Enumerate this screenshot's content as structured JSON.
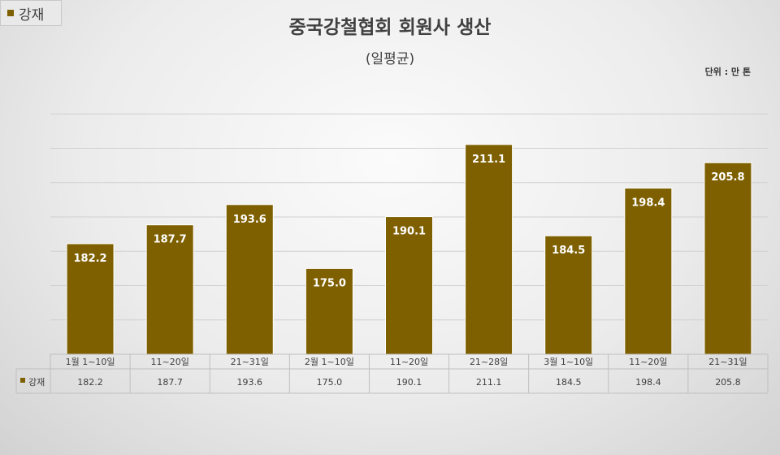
{
  "legend": {
    "label": "강재",
    "color": "#7f6000"
  },
  "header": {
    "title": "중국강철협회 회원사 생산",
    "subtitle": "(일평균)",
    "unit": "단위 : 만 톤"
  },
  "chart_data": {
    "type": "bar",
    "title": "중국강철협회 회원사 생산",
    "subtitle": "(일평균)",
    "unit": "단위 : 만 톤",
    "categories": [
      "1월 1~10일",
      "11~20일",
      "21~31일",
      "2월 1~10일",
      "11~20일",
      "21~28일",
      "3월 1~10일",
      "11~20일",
      "21~31일"
    ],
    "series": [
      {
        "name": "강재",
        "color": "#7f6000",
        "values": [
          182.2,
          187.7,
          193.6,
          175.0,
          190.1,
          211.1,
          184.5,
          198.4,
          205.8
        ]
      }
    ],
    "value_labels": [
      "182.2",
      "187.7",
      "193.6",
      "175.0",
      "190.1",
      "211.1",
      "184.5",
      "198.4",
      "205.8"
    ],
    "ylim": [
      150,
      230
    ],
    "grid": true,
    "data_table": true
  }
}
